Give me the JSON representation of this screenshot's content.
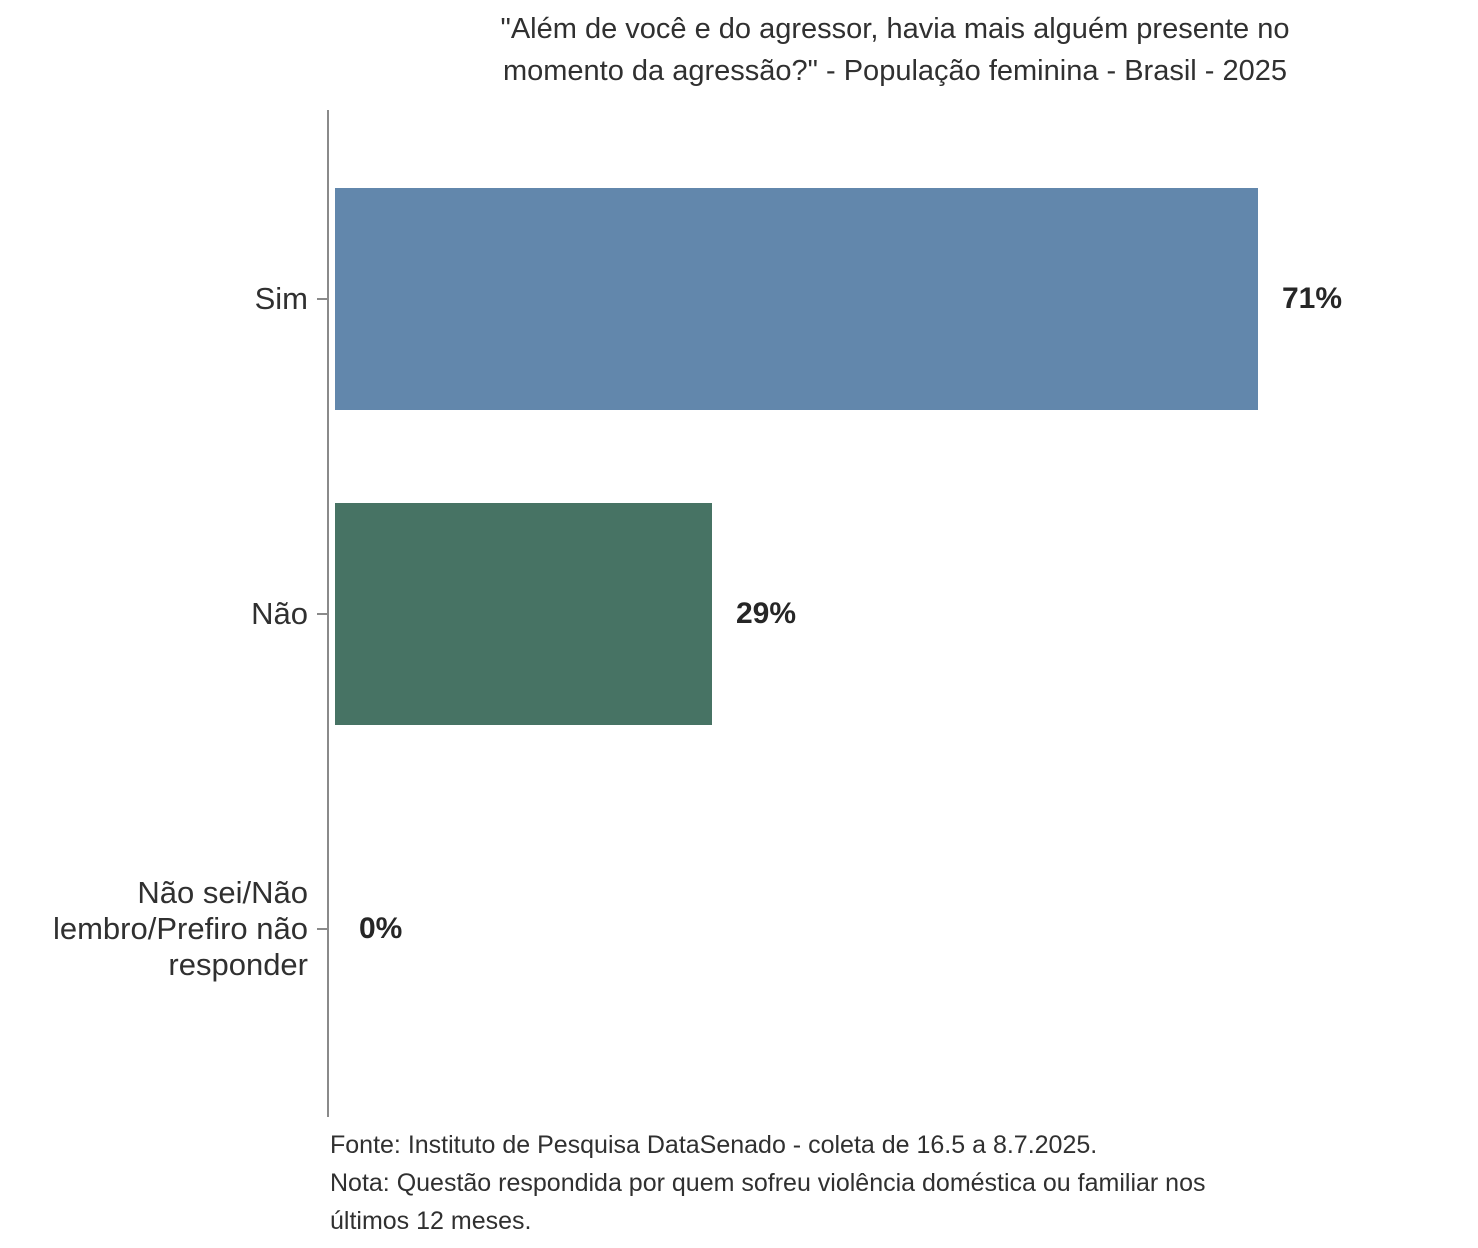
{
  "title_lines": [
    "\"Além de você e do agressor, havia mais alguém presente no",
    "momento da agressão?\" - População feminina - Brasil - 2025"
  ],
  "chart_data": {
    "type": "bar",
    "orientation": "horizontal",
    "title": "\"Além de você e do agressor, havia mais alguém presente no momento da agressão?\" - População feminina - Brasil - 2025",
    "categories": [
      "Sim",
      "Não",
      "Não sei/Não lembro/Prefiro não responder"
    ],
    "values": [
      71,
      29,
      0
    ],
    "value_labels": [
      "71%",
      "29%",
      "0%"
    ],
    "bar_colors": [
      "#6287ac",
      "#477364",
      null
    ],
    "xlabel": "",
    "ylabel": "",
    "xlim": [
      0,
      86
    ],
    "grid": false,
    "legend": false,
    "source_note": "Fonte: Instituto de Pesquisa DataSenado - coleta de 16.5 a 8.7.2025.",
    "note": "Nota: Questão respondida por quem sofreu violência doméstica ou familiar nos últimos 12 meses."
  },
  "footer": {
    "lines": [
      "Fonte: Instituto de Pesquisa DataSenado - coleta de 16.5 a 8.7.2025.",
      "Nota: Questão respondida por quem sofreu violência doméstica ou familiar nos",
      "últimos 12 meses."
    ]
  },
  "colors": {
    "axis": "#8a8a8a",
    "bar_sim": "#6287ac",
    "bar_nao": "#477364",
    "text": "#303030",
    "value_text": "#262626"
  }
}
